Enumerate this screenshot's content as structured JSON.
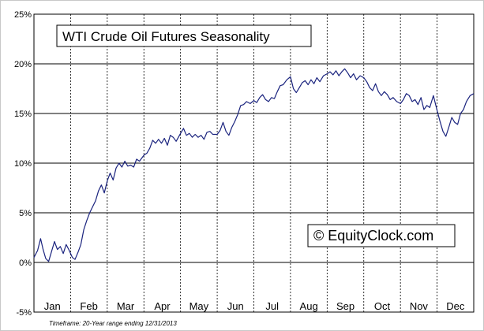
{
  "chart_data": {
    "type": "line",
    "title": "WTI Crude Oil Futures Seasonality",
    "watermark": "© EquityClock.com",
    "footnote": "Timeframe: 20-Year range ending 12/31/2013",
    "xlabel": "",
    "ylabel": "",
    "ylim": [
      -5,
      25
    ],
    "yticks": [
      -5,
      0,
      5,
      10,
      15,
      20,
      25
    ],
    "ytick_labels": [
      "-5%",
      "0%",
      "5%",
      "10%",
      "15%",
      "20%",
      "25%"
    ],
    "categories": [
      "Jan",
      "Feb",
      "Mar",
      "Apr",
      "May",
      "Jun",
      "Jul",
      "Aug",
      "Sep",
      "Oct",
      "Nov",
      "Dec"
    ],
    "grid": {
      "horizontal": true,
      "vertical": "dashed month separators"
    },
    "line_color": "#1a237e",
    "series": [
      {
        "x_unit": "month (fractional, 0 = Jan 1, 12 = Dec 31)",
        "points": [
          [
            0.0,
            0.5
          ],
          [
            0.1,
            1.2
          ],
          [
            0.18,
            2.4
          ],
          [
            0.25,
            1.3
          ],
          [
            0.32,
            0.4
          ],
          [
            0.4,
            0.1
          ],
          [
            0.48,
            1.1
          ],
          [
            0.56,
            2.1
          ],
          [
            0.64,
            1.3
          ],
          [
            0.72,
            1.6
          ],
          [
            0.8,
            0.9
          ],
          [
            0.88,
            1.8
          ],
          [
            0.95,
            1.3
          ],
          [
            1.05,
            0.5
          ],
          [
            1.12,
            0.3
          ],
          [
            1.2,
            1.0
          ],
          [
            1.28,
            1.8
          ],
          [
            1.36,
            3.3
          ],
          [
            1.44,
            4.2
          ],
          [
            1.52,
            5.0
          ],
          [
            1.6,
            5.6
          ],
          [
            1.68,
            6.2
          ],
          [
            1.76,
            7.2
          ],
          [
            1.84,
            7.8
          ],
          [
            1.92,
            7.0
          ],
          [
            2.0,
            8.2
          ],
          [
            2.08,
            9.0
          ],
          [
            2.16,
            8.3
          ],
          [
            2.24,
            9.5
          ],
          [
            2.32,
            10.0
          ],
          [
            2.4,
            9.6
          ],
          [
            2.48,
            10.2
          ],
          [
            2.56,
            9.7
          ],
          [
            2.64,
            9.8
          ],
          [
            2.72,
            9.6
          ],
          [
            2.8,
            10.4
          ],
          [
            2.88,
            10.2
          ],
          [
            3.0,
            10.8
          ],
          [
            3.08,
            11.0
          ],
          [
            3.16,
            11.5
          ],
          [
            3.24,
            12.3
          ],
          [
            3.32,
            12.0
          ],
          [
            3.4,
            12.4
          ],
          [
            3.48,
            12.0
          ],
          [
            3.56,
            12.5
          ],
          [
            3.64,
            11.8
          ],
          [
            3.72,
            12.8
          ],
          [
            3.8,
            12.6
          ],
          [
            3.88,
            12.2
          ],
          [
            4.0,
            13.0
          ],
          [
            4.08,
            13.5
          ],
          [
            4.16,
            12.8
          ],
          [
            4.24,
            13.0
          ],
          [
            4.32,
            12.6
          ],
          [
            4.4,
            12.9
          ],
          [
            4.48,
            12.6
          ],
          [
            4.56,
            12.8
          ],
          [
            4.64,
            12.4
          ],
          [
            4.72,
            13.1
          ],
          [
            4.8,
            13.2
          ],
          [
            4.88,
            12.9
          ],
          [
            5.0,
            12.9
          ],
          [
            5.08,
            13.3
          ],
          [
            5.16,
            14.1
          ],
          [
            5.24,
            13.2
          ],
          [
            5.32,
            12.8
          ],
          [
            5.4,
            13.6
          ],
          [
            5.48,
            14.2
          ],
          [
            5.56,
            14.9
          ],
          [
            5.64,
            15.8
          ],
          [
            5.72,
            15.9
          ],
          [
            5.8,
            16.2
          ],
          [
            5.9,
            16.0
          ],
          [
            6.0,
            16.3
          ],
          [
            6.08,
            16.1
          ],
          [
            6.16,
            16.6
          ],
          [
            6.24,
            16.9
          ],
          [
            6.32,
            16.4
          ],
          [
            6.4,
            16.2
          ],
          [
            6.48,
            16.6
          ],
          [
            6.56,
            16.5
          ],
          [
            6.64,
            17.2
          ],
          [
            6.72,
            17.8
          ],
          [
            6.8,
            17.9
          ],
          [
            6.9,
            18.4
          ],
          [
            7.0,
            18.7
          ],
          [
            7.08,
            17.5
          ],
          [
            7.16,
            17.1
          ],
          [
            7.24,
            17.6
          ],
          [
            7.32,
            18.1
          ],
          [
            7.4,
            18.3
          ],
          [
            7.48,
            17.9
          ],
          [
            7.56,
            18.4
          ],
          [
            7.64,
            18.0
          ],
          [
            7.72,
            18.6
          ],
          [
            7.8,
            18.2
          ],
          [
            7.9,
            18.8
          ],
          [
            8.0,
            19.0
          ],
          [
            8.08,
            19.2
          ],
          [
            8.16,
            18.9
          ],
          [
            8.24,
            19.3
          ],
          [
            8.32,
            18.8
          ],
          [
            8.4,
            19.2
          ],
          [
            8.48,
            19.5
          ],
          [
            8.56,
            19.1
          ],
          [
            8.64,
            18.6
          ],
          [
            8.72,
            19.0
          ],
          [
            8.8,
            18.4
          ],
          [
            8.9,
            18.8
          ],
          [
            9.0,
            18.6
          ],
          [
            9.08,
            18.2
          ],
          [
            9.16,
            17.6
          ],
          [
            9.24,
            17.3
          ],
          [
            9.32,
            18.0
          ],
          [
            9.4,
            17.2
          ],
          [
            9.48,
            16.8
          ],
          [
            9.56,
            17.2
          ],
          [
            9.64,
            16.9
          ],
          [
            9.72,
            16.4
          ],
          [
            9.8,
            16.6
          ],
          [
            9.9,
            16.2
          ],
          [
            10.0,
            16.0
          ],
          [
            10.08,
            16.4
          ],
          [
            10.16,
            17.0
          ],
          [
            10.24,
            16.8
          ],
          [
            10.32,
            16.2
          ],
          [
            10.4,
            16.4
          ],
          [
            10.48,
            15.9
          ],
          [
            10.56,
            16.6
          ],
          [
            10.64,
            15.4
          ],
          [
            10.72,
            15.8
          ],
          [
            10.8,
            15.6
          ],
          [
            10.9,
            16.8
          ],
          [
            11.0,
            15.3
          ],
          [
            11.08,
            14.2
          ],
          [
            11.16,
            13.2
          ],
          [
            11.24,
            12.7
          ],
          [
            11.32,
            13.6
          ],
          [
            11.4,
            14.6
          ],
          [
            11.48,
            14.1
          ],
          [
            11.56,
            13.9
          ],
          [
            11.64,
            15.0
          ],
          [
            11.72,
            15.4
          ],
          [
            11.8,
            16.2
          ],
          [
            11.9,
            16.8
          ],
          [
            12.0,
            17.0
          ]
        ]
      }
    ]
  }
}
